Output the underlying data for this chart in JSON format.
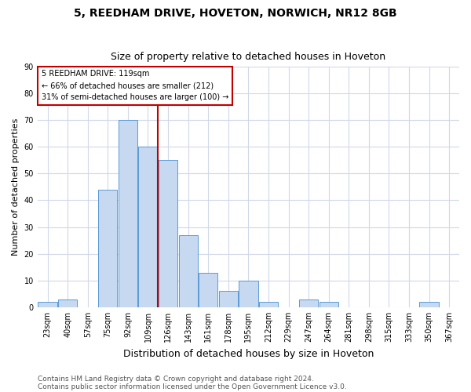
{
  "title": "5, REEDHAM DRIVE, HOVETON, NORWICH, NR12 8GB",
  "subtitle": "Size of property relative to detached houses in Hoveton",
  "xlabel": "Distribution of detached houses by size in Hoveton",
  "ylabel": "Number of detached properties",
  "categories": [
    "23sqm",
    "40sqm",
    "57sqm",
    "75sqm",
    "92sqm",
    "109sqm",
    "126sqm",
    "143sqm",
    "161sqm",
    "178sqm",
    "195sqm",
    "212sqm",
    "229sqm",
    "247sqm",
    "264sqm",
    "281sqm",
    "298sqm",
    "315sqm",
    "333sqm",
    "350sqm",
    "367sqm"
  ],
  "values": [
    2,
    3,
    0,
    44,
    70,
    60,
    55,
    27,
    13,
    6,
    10,
    2,
    0,
    3,
    2,
    0,
    0,
    0,
    0,
    2,
    0
  ],
  "bar_color": "#c6d9f0",
  "bar_edge_color": "#5b9bd5",
  "vline_pos": 5.5,
  "vline_color": "#c00000",
  "annotation_title": "5 REEDHAM DRIVE: 119sqm",
  "annotation_line2": "← 66% of detached houses are smaller (212)",
  "annotation_line3": "31% of semi-detached houses are larger (100) →",
  "annotation_box_color": "#c00000",
  "annotation_bg_color": "#ffffff",
  "ylim": [
    0,
    90
  ],
  "yticks": [
    0,
    10,
    20,
    30,
    40,
    50,
    60,
    70,
    80,
    90
  ],
  "footnote1": "Contains HM Land Registry data © Crown copyright and database right 2024.",
  "footnote2": "Contains public sector information licensed under the Open Government Licence v3.0.",
  "bg_color": "#ffffff",
  "grid_color": "#d0d8e8",
  "title_fontsize": 10,
  "subtitle_fontsize": 9,
  "xlabel_fontsize": 9,
  "ylabel_fontsize": 8,
  "tick_fontsize": 7,
  "annotation_fontsize": 7,
  "footnote_fontsize": 6.5
}
